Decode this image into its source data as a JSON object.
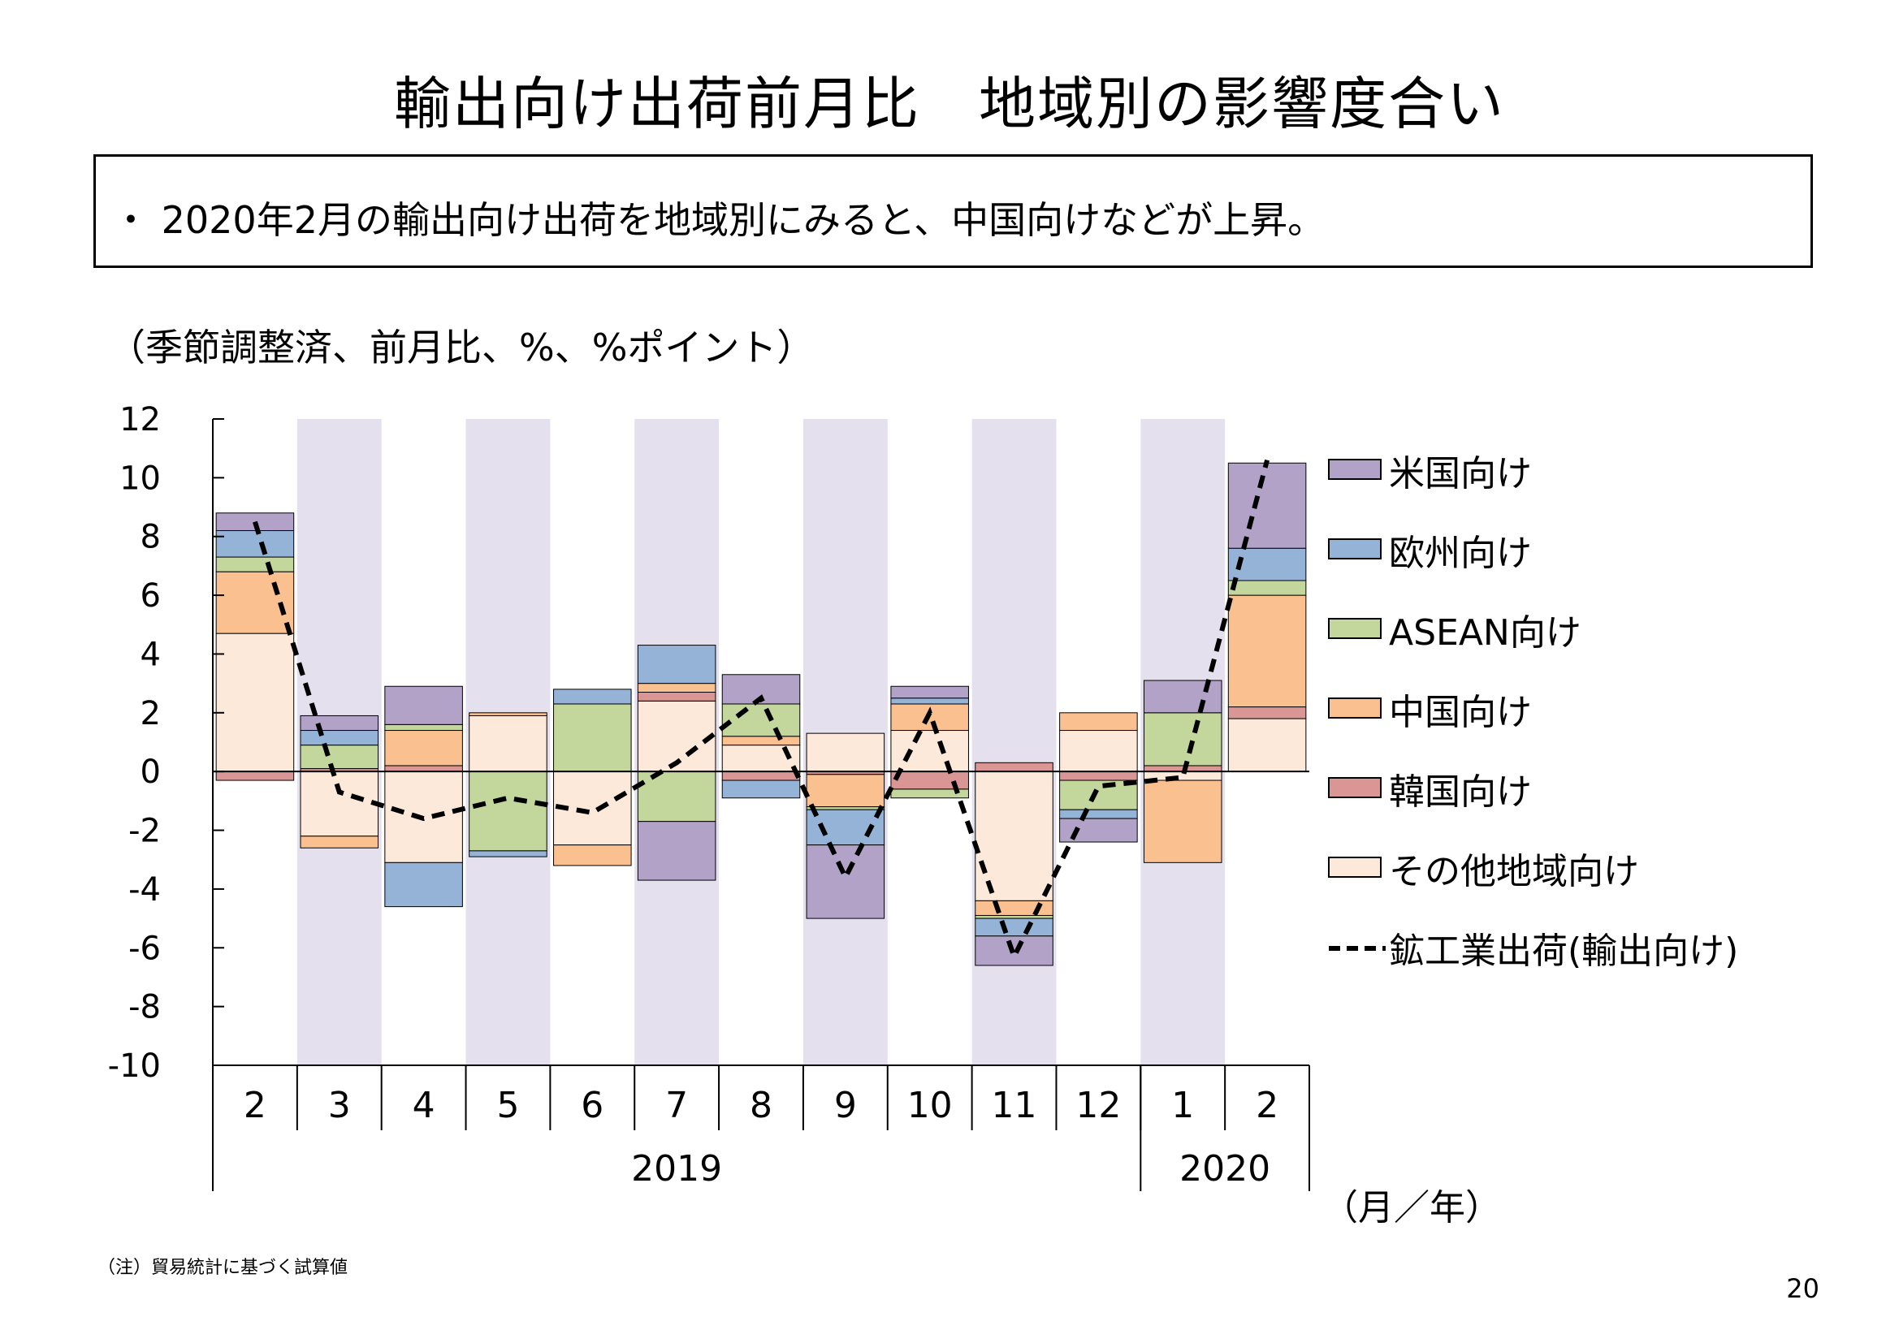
{
  "header": {
    "title": "輸出向け出荷前月比　地域別の影響度合い"
  },
  "summary": {
    "text": "・ 2020年2月の輸出向け出荷を地域別にみると、中国向けなどが上昇。"
  },
  "units_label": "（季節調整済、前月比、%、%ポイント）",
  "footnote": "（注）貿易統計に基づく試算値",
  "page_number": "20",
  "colors": {
    "shade": "#e5e0ee",
    "us": "#b3a2c8",
    "europe": "#95b3d7",
    "asean": "#c3d69b",
    "china": "#fac090",
    "korea": "#d99694",
    "other": "#fde9d9",
    "line": "#000000"
  },
  "chart_data": {
    "type": "bar",
    "stacked": true,
    "categories": [
      "2",
      "3",
      "4",
      "5",
      "6",
      "7",
      "8",
      "9",
      "10",
      "11",
      "12",
      "1",
      "2"
    ],
    "year_labels": [
      {
        "label": "2019",
        "from": 0,
        "to": 10
      },
      {
        "label": "2020",
        "from": 11,
        "to": 12
      }
    ],
    "x_unit_label": "（月／年）",
    "ylim": [
      -10,
      12
    ],
    "y_ticks": [
      12,
      10,
      8,
      6,
      4,
      2,
      0,
      -2,
      -4,
      -6,
      -8,
      -10
    ],
    "shaded_categories": [
      1,
      3,
      5,
      7,
      9,
      11
    ],
    "legend_position": "right",
    "series": [
      {
        "name": "その他地域向け",
        "color_key": "other",
        "values": [
          4.7,
          -2.2,
          -3.1,
          1.9,
          -2.5,
          2.4,
          0.9,
          1.3,
          1.4,
          -4.4,
          1.4,
          -0.3,
          1.8
        ]
      },
      {
        "name": "韓国向け",
        "color_key": "korea",
        "values": [
          -0.3,
          0.1,
          0.2,
          0.0,
          0.0,
          0.3,
          -0.3,
          -0.1,
          -0.6,
          0.3,
          -0.3,
          0.2,
          0.4
        ]
      },
      {
        "name": "中国向け",
        "color_key": "china",
        "values": [
          2.1,
          -0.4,
          1.2,
          0.1,
          -0.7,
          0.3,
          0.3,
          -1.1,
          0.9,
          -0.5,
          0.6,
          -2.8,
          3.8
        ]
      },
      {
        "name": "ASEAN向け",
        "color_key": "asean",
        "values": [
          0.5,
          0.8,
          0.2,
          -2.7,
          2.3,
          -1.7,
          1.1,
          -0.1,
          -0.3,
          -0.1,
          -1.0,
          1.8,
          0.5
        ]
      },
      {
        "name": "欧州向け",
        "color_key": "europe",
        "values": [
          0.9,
          0.5,
          -1.5,
          -0.2,
          0.5,
          1.3,
          -0.6,
          -1.2,
          0.2,
          -0.6,
          -0.3,
          0.0,
          1.1
        ]
      },
      {
        "name": "米国向け",
        "color_key": "us",
        "values": [
          0.6,
          0.5,
          1.3,
          0.0,
          0.0,
          -2.0,
          1.0,
          -2.5,
          0.4,
          -1.0,
          -0.8,
          1.1,
          2.9
        ]
      }
    ],
    "line": {
      "name": "鉱工業出荷(輸出向け)",
      "values": [
        8.5,
        -0.7,
        -1.6,
        -0.9,
        -1.4,
        0.3,
        2.5,
        -3.6,
        2.0,
        -6.3,
        -0.5,
        -0.2,
        10.6
      ]
    }
  }
}
